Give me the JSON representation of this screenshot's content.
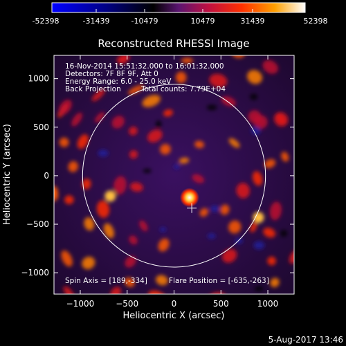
{
  "colorbar": {
    "tick_labels": [
      "-52398",
      "-31439",
      "-10479",
      "10479",
      "31439",
      "52398"
    ],
    "colors": [
      "#0000ff",
      "#000000",
      "#7a1e9a",
      "#ff2a00",
      "#ffb000",
      "#ffffff"
    ]
  },
  "chart_data": {
    "type": "heatmap",
    "title": "Reconstructed RHESSI Image",
    "xlabel": "Heliocentric X (arcsec)",
    "ylabel": "Heliocentric Y (arcsec)",
    "xlim": [
      -1280,
      1280
    ],
    "ylim": [
      -1220,
      1240
    ],
    "x_ticks": [
      -1000,
      -500,
      0,
      500,
      1000
    ],
    "y_ticks": [
      -1000,
      -500,
      0,
      500,
      1000
    ],
    "x_tick_labels": [
      "−1000",
      "−500",
      "0",
      "500",
      "1000"
    ],
    "y_tick_labels": [
      "−1000",
      "−500",
      "0",
      "500",
      "1000"
    ],
    "value_range": [
      -52398,
      52398
    ],
    "solar_limb_radius": 975,
    "flare_marker": [
      189,
      -334
    ],
    "peak_source": [
      165,
      -225
    ],
    "annotations": [
      "16-Nov-2014 15:51:32.000 to 16:01:32.000",
      "Detectors: 7F 8F 9F, Att 0",
      "Energy Range: 6.0 - 25.0 keV",
      "Back Projection",
      "Total counts: 7.79E+04"
    ],
    "footer_left": "Spin Axis = [189,-334]",
    "footer_right": "Flare Position = [-635,-263]"
  },
  "timestamp": "5-Aug-2017 13:46"
}
